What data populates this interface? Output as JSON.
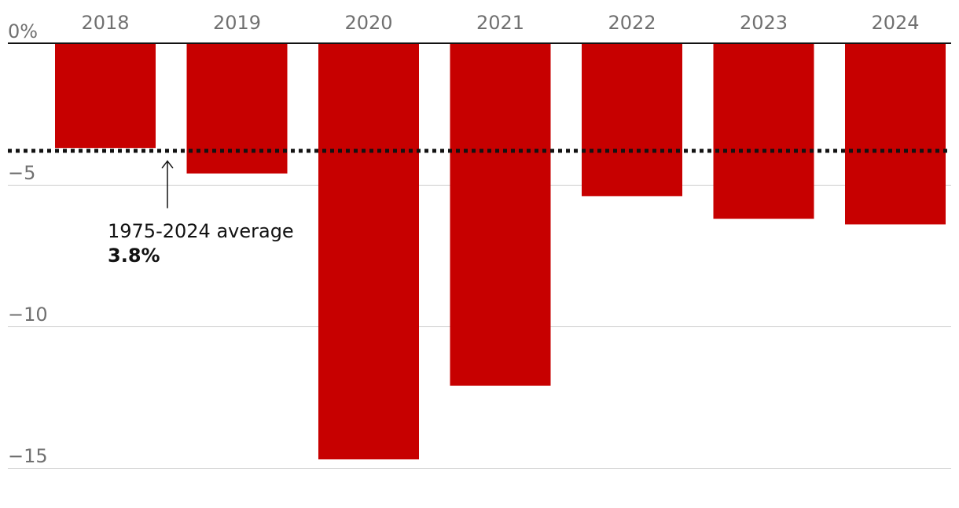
{
  "chart_data": {
    "type": "bar",
    "categories": [
      "2018",
      "2019",
      "2020",
      "2021",
      "2022",
      "2023",
      "2024"
    ],
    "values": [
      -3.7,
      -4.6,
      -14.7,
      -12.1,
      -5.4,
      -6.2,
      -6.4
    ],
    "unit": "%",
    "ylim": [
      -15,
      0
    ],
    "yticks": [
      {
        "value": 0,
        "label": "0%"
      },
      {
        "value": -5,
        "label": "−5"
      },
      {
        "value": -10,
        "label": "−10"
      },
      {
        "value": -15,
        "label": "−15"
      }
    ],
    "grid": true,
    "reference_line": {
      "value": -3.8,
      "style": "dotted",
      "label": "1975-2024 average",
      "value_label": "3.8%"
    },
    "bar_color": "#c70000",
    "grid_color": "#cccccc",
    "axis_color": "#121212",
    "tick_label_color": "#707070"
  }
}
